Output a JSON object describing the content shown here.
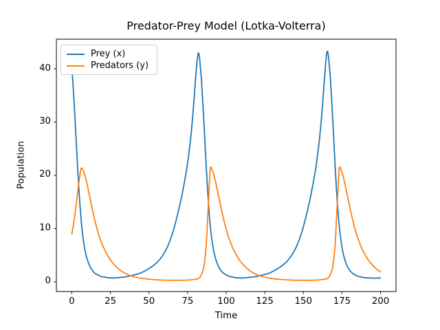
{
  "chart_data": {
    "type": "line",
    "title": "Predator-Prey Model (Lotka-Volterra)",
    "xlabel": "Time",
    "ylabel": "Population",
    "xlim": [
      -10,
      210
    ],
    "ylim": [
      -1.81,
      45.55
    ],
    "xticks": [
      0,
      25,
      50,
      75,
      100,
      125,
      150,
      175,
      200
    ],
    "yticks": [
      0,
      10,
      20,
      30,
      40
    ],
    "grid": false,
    "legend_position": "upper-left",
    "background": "#ffffff",
    "text_color": "#000000",
    "series": [
      {
        "name": "Prey (x)",
        "color": "#1f77b4",
        "points": [
          [
            0,
            40
          ],
          [
            1,
            36.1
          ],
          [
            2,
            31.1
          ],
          [
            3,
            25.6
          ],
          [
            4,
            20.3
          ],
          [
            5,
            15.6
          ],
          [
            6,
            11.8
          ],
          [
            7,
            8.9
          ],
          [
            8,
            6.8
          ],
          [
            9,
            5.3
          ],
          [
            10,
            4.2
          ],
          [
            11,
            3.4
          ],
          [
            12,
            2.7
          ],
          [
            13,
            2.3
          ],
          [
            14,
            1.9
          ],
          [
            15,
            1.6
          ],
          [
            17,
            1.3
          ],
          [
            19,
            1.0
          ],
          [
            21,
            0.9
          ],
          [
            23,
            0.8
          ],
          [
            25,
            0.73
          ],
          [
            27,
            0.72
          ],
          [
            30,
            0.8
          ],
          [
            33,
            0.88
          ],
          [
            36,
            1.0
          ],
          [
            39,
            1.2
          ],
          [
            41,
            1.35
          ],
          [
            44,
            1.6
          ],
          [
            47,
            2.0
          ],
          [
            50,
            2.5
          ],
          [
            53,
            3.1
          ],
          [
            56,
            3.9
          ],
          [
            59,
            5.0
          ],
          [
            62,
            6.6
          ],
          [
            65,
            8.9
          ],
          [
            67,
            10.9
          ],
          [
            69,
            13.2
          ],
          [
            71,
            15.8
          ],
          [
            73,
            18.8
          ],
          [
            74.5,
            21.3
          ],
          [
            76,
            24.5
          ],
          [
            77,
            27
          ],
          [
            78,
            30
          ],
          [
            79,
            33.5
          ],
          [
            80,
            37.5
          ],
          [
            81,
            41
          ],
          [
            81.5,
            42.3
          ],
          [
            82,
            43
          ],
          [
            82.5,
            42.5
          ],
          [
            83,
            41.3
          ],
          [
            84,
            37.8
          ],
          [
            85,
            33
          ],
          [
            86,
            27.5
          ],
          [
            87,
            22
          ],
          [
            88,
            17
          ],
          [
            89,
            12.9
          ],
          [
            90,
            9.7
          ],
          [
            91,
            7.4
          ],
          [
            92,
            5.7
          ],
          [
            93,
            4.5
          ],
          [
            94,
            3.6
          ],
          [
            95,
            2.9
          ],
          [
            96,
            2.4
          ],
          [
            97,
            2.0
          ],
          [
            98,
            1.7
          ],
          [
            100,
            1.3
          ],
          [
            102,
            1.05
          ],
          [
            104,
            0.9
          ],
          [
            106,
            0.8
          ],
          [
            108,
            0.74
          ],
          [
            110.5,
            0.72
          ],
          [
            113,
            0.79
          ],
          [
            116,
            0.87
          ],
          [
            119,
            0.98
          ],
          [
            122,
            1.17
          ],
          [
            124.5,
            1.35
          ],
          [
            127.5,
            1.6
          ],
          [
            130.5,
            2.0
          ],
          [
            133.5,
            2.5
          ],
          [
            136.5,
            3.1
          ],
          [
            139.5,
            3.9
          ],
          [
            142.5,
            5.0
          ],
          [
            145.5,
            6.6
          ],
          [
            148.5,
            8.9
          ],
          [
            150.5,
            10.9
          ],
          [
            152.5,
            13.2
          ],
          [
            154.5,
            15.8
          ],
          [
            156.5,
            18.8
          ],
          [
            158,
            21.3
          ],
          [
            159.5,
            24.5
          ],
          [
            160.5,
            27
          ],
          [
            161.5,
            30
          ],
          [
            162.5,
            33.5
          ],
          [
            163.5,
            37.5
          ],
          [
            164.5,
            41.2
          ],
          [
            165,
            42.6
          ],
          [
            165.5,
            43.3
          ],
          [
            166,
            42.8
          ],
          [
            166.5,
            41.6
          ],
          [
            167.5,
            38.1
          ],
          [
            168.5,
            33.3
          ],
          [
            169.5,
            27.7
          ],
          [
            170.5,
            22.2
          ],
          [
            171.5,
            17.1
          ],
          [
            172.5,
            13
          ],
          [
            173.5,
            9.8
          ],
          [
            174.5,
            7.5
          ],
          [
            175.5,
            5.7
          ],
          [
            176.5,
            4.5
          ],
          [
            177.5,
            3.6
          ],
          [
            178.5,
            2.9
          ],
          [
            179.5,
            2.4
          ],
          [
            180.5,
            2.0
          ],
          [
            181.5,
            1.7
          ],
          [
            183.5,
            1.3
          ],
          [
            185.5,
            1.05
          ],
          [
            187.5,
            0.9
          ],
          [
            189.5,
            0.8
          ],
          [
            191.5,
            0.74
          ],
          [
            194,
            0.71
          ],
          [
            197,
            0.7
          ],
          [
            200,
            0.72
          ]
        ]
      },
      {
        "name": "Predators (y)",
        "color": "#ff7f0e",
        "points": [
          [
            0,
            9
          ],
          [
            1,
            10.6
          ],
          [
            2,
            12.6
          ],
          [
            3,
            14.9
          ],
          [
            4,
            17.3
          ],
          [
            5,
            19.5
          ],
          [
            5.7,
            20.9
          ],
          [
            6.3,
            21.4
          ],
          [
            7.3,
            21
          ],
          [
            8.3,
            20.2
          ],
          [
            9.3,
            19.1
          ],
          [
            10.3,
            17.8
          ],
          [
            11.3,
            16.4
          ],
          [
            12.3,
            15
          ],
          [
            13.3,
            13.6
          ],
          [
            14.3,
            12.3
          ],
          [
            15.3,
            11.1
          ],
          [
            16.3,
            10
          ],
          [
            17.3,
            9
          ],
          [
            18.3,
            8.1
          ],
          [
            19.3,
            7.3
          ],
          [
            21.3,
            6
          ],
          [
            23.3,
            4.9
          ],
          [
            25.3,
            4
          ],
          [
            27.3,
            3.3
          ],
          [
            29.3,
            2.7
          ],
          [
            31.3,
            2.2
          ],
          [
            33.3,
            1.8
          ],
          [
            35.3,
            1.5
          ],
          [
            37.3,
            1.23
          ],
          [
            39.8,
            1.0
          ],
          [
            42.3,
            0.82
          ],
          [
            45.3,
            0.67
          ],
          [
            48.3,
            0.55
          ],
          [
            51.3,
            0.46
          ],
          [
            54.3,
            0.4
          ],
          [
            57.3,
            0.35
          ],
          [
            61.3,
            0.31
          ],
          [
            65.3,
            0.29
          ],
          [
            69.3,
            0.29
          ],
          [
            73.3,
            0.32
          ],
          [
            76.8,
            0.37
          ],
          [
            79.3,
            0.45
          ],
          [
            81.8,
            0.6
          ],
          [
            83.3,
            1.0
          ],
          [
            84.6,
            1.8
          ],
          [
            85.6,
            3.0
          ],
          [
            86.5,
            5.0
          ],
          [
            87.3,
            8.0
          ],
          [
            88,
            12
          ],
          [
            88.7,
            16
          ],
          [
            89.3,
            19.5
          ],
          [
            89.8,
            21.5
          ],
          [
            90.8,
            21.1
          ],
          [
            91.8,
            20.3
          ],
          [
            92.8,
            19.2
          ],
          [
            93.8,
            17.9
          ],
          [
            94.8,
            16.5
          ],
          [
            95.8,
            15.1
          ],
          [
            96.8,
            13.7
          ],
          [
            97.8,
            12.4
          ],
          [
            98.8,
            11.2
          ],
          [
            99.8,
            10.1
          ],
          [
            100.8,
            9.1
          ],
          [
            101.8,
            8.2
          ],
          [
            102.8,
            7.4
          ],
          [
            104.8,
            6
          ],
          [
            106.8,
            4.9
          ],
          [
            108.8,
            4
          ],
          [
            110.8,
            3.3
          ],
          [
            112.8,
            2.7
          ],
          [
            114.8,
            2.2
          ],
          [
            116.8,
            1.8
          ],
          [
            118.8,
            1.5
          ],
          [
            120.8,
            1.23
          ],
          [
            123.3,
            1.0
          ],
          [
            125.8,
            0.82
          ],
          [
            128.8,
            0.67
          ],
          [
            131.8,
            0.55
          ],
          [
            134.8,
            0.46
          ],
          [
            137.8,
            0.4
          ],
          [
            140.8,
            0.35
          ],
          [
            144.8,
            0.31
          ],
          [
            148.8,
            0.29
          ],
          [
            152.8,
            0.29
          ],
          [
            156.8,
            0.32
          ],
          [
            160.3,
            0.37
          ],
          [
            162.8,
            0.45
          ],
          [
            165.3,
            0.6
          ],
          [
            166.8,
            1.0
          ],
          [
            168.1,
            1.8
          ],
          [
            169.1,
            3.0
          ],
          [
            170,
            5.0
          ],
          [
            170.8,
            8.0
          ],
          [
            171.5,
            12
          ],
          [
            172.2,
            16
          ],
          [
            172.8,
            19.5
          ],
          [
            173.3,
            21.5
          ],
          [
            174.3,
            21.1
          ],
          [
            175.3,
            20.3
          ],
          [
            176.3,
            19.2
          ],
          [
            177.3,
            17.9
          ],
          [
            178.3,
            16.5
          ],
          [
            179.3,
            15.1
          ],
          [
            180.3,
            13.7
          ],
          [
            181.3,
            12.4
          ],
          [
            182.3,
            11.2
          ],
          [
            183.3,
            10.1
          ],
          [
            184.3,
            9.1
          ],
          [
            185.3,
            8.2
          ],
          [
            186.3,
            7.4
          ],
          [
            188.3,
            6
          ],
          [
            190.3,
            4.9
          ],
          [
            192.3,
            4
          ],
          [
            194.3,
            3.3
          ],
          [
            196.3,
            2.7
          ],
          [
            198.3,
            2.2
          ],
          [
            200,
            1.9
          ]
        ]
      }
    ]
  }
}
